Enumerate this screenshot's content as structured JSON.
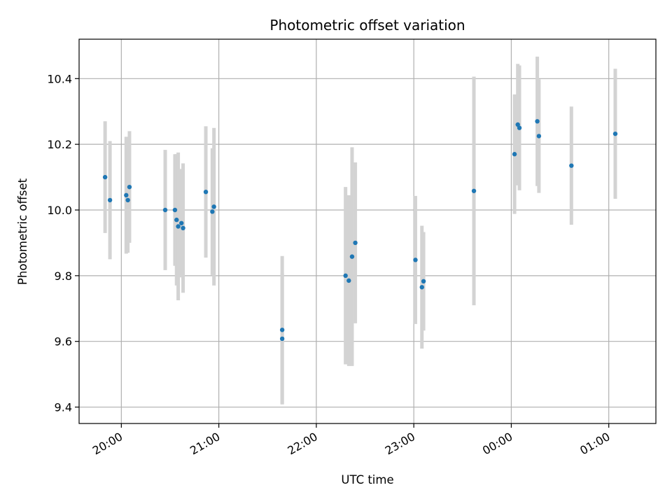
{
  "chart_data": {
    "type": "scatter",
    "title": "Photometric offset variation",
    "xlabel": "UTC time",
    "ylabel": "Photometric offset",
    "x_axis_kind": "time",
    "xlim": [
      "19:34",
      "01:29"
    ],
    "ylim": [
      9.35,
      10.52
    ],
    "grid": true,
    "xticks": [
      {
        "value": "20:00",
        "label": "20:00"
      },
      {
        "value": "21:00",
        "label": "21:00"
      },
      {
        "value": "22:00",
        "label": "22:00"
      },
      {
        "value": "23:00",
        "label": "23:00"
      },
      {
        "value": "00:00",
        "label": "00:00"
      },
      {
        "value": "01:00",
        "label": "01:00"
      }
    ],
    "yticks": [
      {
        "value": 9.4,
        "label": "9.4"
      },
      {
        "value": 9.6,
        "label": "9.6"
      },
      {
        "value": 9.8,
        "label": "9.8"
      },
      {
        "value": 10.0,
        "label": "10.0"
      },
      {
        "value": 10.2,
        "label": "10.2"
      },
      {
        "value": 10.4,
        "label": "10.4"
      }
    ],
    "point_color": "#1f77b4",
    "errorbar_color": "#d3d3d3",
    "series": [
      {
        "points": [
          {
            "x": "19:50",
            "y": 10.1,
            "err": 0.17
          },
          {
            "x": "19:53",
            "y": 10.03,
            "err": 0.18
          },
          {
            "x": "20:03",
            "y": 10.045,
            "err": 0.178
          },
          {
            "x": "20:04",
            "y": 10.03,
            "err": 0.16
          },
          {
            "x": "20:05",
            "y": 10.07,
            "err": 0.17
          },
          {
            "x": "20:27",
            "y": 10.0,
            "err": 0.183
          },
          {
            "x": "20:33",
            "y": 10.0,
            "err": 0.17
          },
          {
            "x": "20:34",
            "y": 9.97,
            "err": 0.2
          },
          {
            "x": "20:35",
            "y": 9.95,
            "err": 0.225
          },
          {
            "x": "20:37",
            "y": 9.96,
            "err": 0.165
          },
          {
            "x": "20:38",
            "y": 9.945,
            "err": 0.197
          },
          {
            "x": "20:52",
            "y": 10.055,
            "err": 0.2
          },
          {
            "x": "20:56",
            "y": 9.995,
            "err": 0.193
          },
          {
            "x": "20:57",
            "y": 10.01,
            "err": 0.24
          },
          {
            "x": "21:39",
            "y": 9.635,
            "err": 0.225
          },
          {
            "x": "21:39",
            "y": 9.608,
            "err": 0.2
          },
          {
            "x": "22:18",
            "y": 9.8,
            "err": 0.27
          },
          {
            "x": "22:20",
            "y": 9.785,
            "err": 0.26
          },
          {
            "x": "22:22",
            "y": 9.858,
            "err": 0.333
          },
          {
            "x": "22:24",
            "y": 9.9,
            "err": 0.245
          },
          {
            "x": "23:01",
            "y": 9.848,
            "err": 0.195
          },
          {
            "x": "23:05",
            "y": 9.765,
            "err": 0.187
          },
          {
            "x": "23:06",
            "y": 9.783,
            "err": 0.15
          },
          {
            "x": "23:37",
            "y": 10.058,
            "err": 0.348
          },
          {
            "x": "00:02",
            "y": 10.17,
            "err": 0.182
          },
          {
            "x": "00:04",
            "y": 10.26,
            "err": 0.185
          },
          {
            "x": "00:05",
            "y": 10.25,
            "err": 0.19
          },
          {
            "x": "00:16",
            "y": 10.27,
            "err": 0.197
          },
          {
            "x": "00:17",
            "y": 10.225,
            "err": 0.173
          },
          {
            "x": "00:37",
            "y": 10.135,
            "err": 0.18
          },
          {
            "x": "01:04",
            "y": 10.232,
            "err": 0.198
          }
        ]
      }
    ]
  }
}
